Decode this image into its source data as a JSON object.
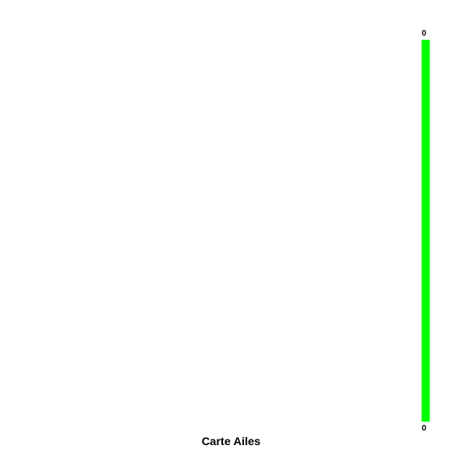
{
  "title": "Carte Ailes",
  "scale": {
    "max_label": "0",
    "min_label": "0",
    "color": "#00ff00"
  }
}
